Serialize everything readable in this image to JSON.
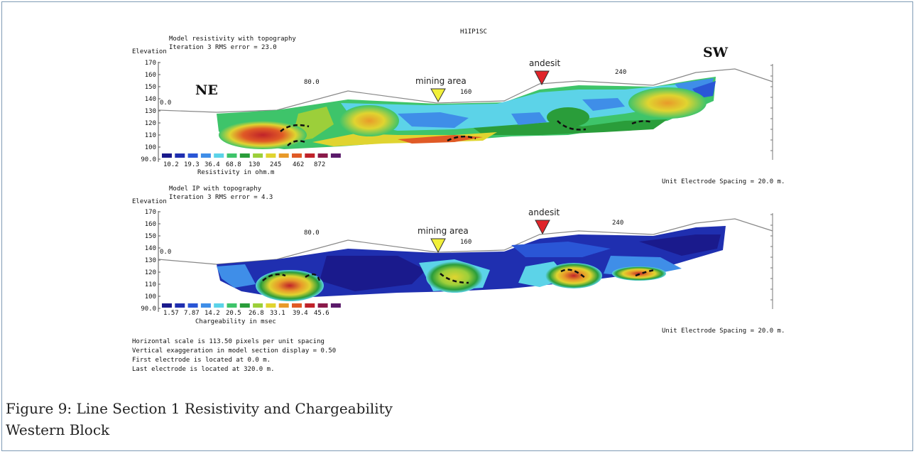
{
  "figure": {
    "header": "H1IP1SC",
    "direction_left": "NE",
    "direction_right": "SW",
    "marker_mining": "mining area",
    "marker_andesit": "andesit",
    "top": {
      "title_line1": "Model resistivity with topography",
      "title_line2": "Iteration 3 RMS error = 23.0",
      "elevation_label": "Elevation",
      "x_ticks": [
        "0.0",
        "80.0",
        "160",
        "240"
      ],
      "y_ticks": [
        "170",
        "160",
        "150",
        "140",
        "130",
        "120",
        "110",
        "100",
        "90.0"
      ],
      "scale_values": [
        "10.2",
        "19.3",
        "36.4",
        "68.8",
        "130",
        "245",
        "462",
        "872"
      ],
      "scale_label": "Resistivity in ohm.m",
      "spacing": "Unit Electrode Spacing = 20.0 m."
    },
    "bottom": {
      "title_line1": "Model IP with topography",
      "title_line2": "Iteration 3 RMS error = 4.3",
      "elevation_label": "Elevation",
      "x_ticks": [
        "0.0",
        "80.0",
        "160",
        "240"
      ],
      "y_ticks": [
        "170",
        "160",
        "150",
        "140",
        "130",
        "120",
        "110",
        "100",
        "90.0"
      ],
      "scale_values": [
        "1.57",
        "7.87",
        "14.2",
        "20.5",
        "26.8",
        "33.1",
        "39.4",
        "45.6"
      ],
      "scale_label": "Chargeability in msec",
      "spacing": "Unit Electrode Spacing = 20.0 m."
    },
    "notes": [
      "Horizontal scale is 113.50 pixels per unit spacing",
      "Vertical exaggeration in model section display = 0.50",
      "First electrode is located at 0.0  m.",
      "Last electrode is located at 320.0 m."
    ],
    "colors": [
      "#1a1a8c",
      "#1f2fb0",
      "#2a56d6",
      "#3f8ee8",
      "#5cd3e8",
      "#3ec46a",
      "#2a9d3a",
      "#9ccf3a",
      "#e0d430",
      "#e89a2a",
      "#e05a26",
      "#c0222a",
      "#8a1a4a",
      "#5a1a6a"
    ]
  },
  "caption": {
    "line1": "Figure 9: Line Section 1 Resistivity and Chargeability",
    "line2": "Western Block"
  }
}
